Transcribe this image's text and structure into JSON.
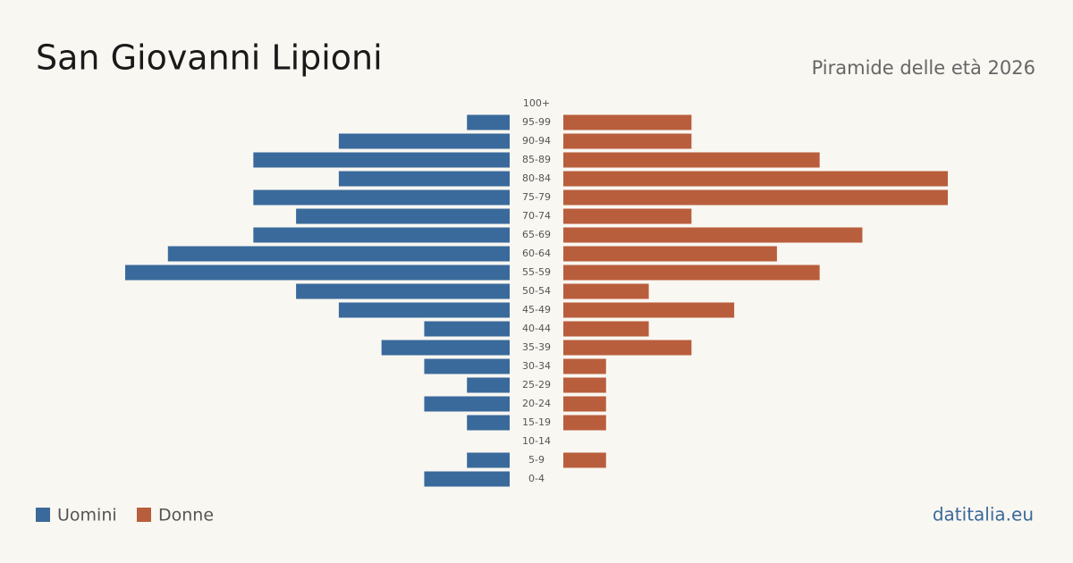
{
  "chart_data": {
    "type": "pyramid",
    "title": "San Giovanni Lipioni",
    "subtitle": "Piramide delle età 2026",
    "source": "datitalia.eu",
    "categories": [
      "100+",
      "95-99",
      "90-94",
      "85-89",
      "80-84",
      "75-79",
      "70-74",
      "65-69",
      "60-64",
      "55-59",
      "50-54",
      "45-49",
      "40-44",
      "35-39",
      "30-34",
      "25-29",
      "20-24",
      "15-19",
      "10-14",
      "5-9",
      "0-4"
    ],
    "series": [
      {
        "name": "Uomini",
        "color": "#3a6a9b",
        "values": [
          0,
          1,
          4,
          6,
          4,
          6,
          5,
          6,
          8,
          9,
          5,
          4,
          2,
          3,
          2,
          1,
          2,
          1,
          0,
          1,
          2
        ]
      },
      {
        "name": "Donne",
        "color": "#b95e3c",
        "values": [
          0,
          3,
          3,
          6,
          9,
          9,
          3,
          7,
          5,
          6,
          2,
          4,
          2,
          3,
          1,
          1,
          1,
          1,
          0,
          1,
          0
        ]
      }
    ]
  }
}
